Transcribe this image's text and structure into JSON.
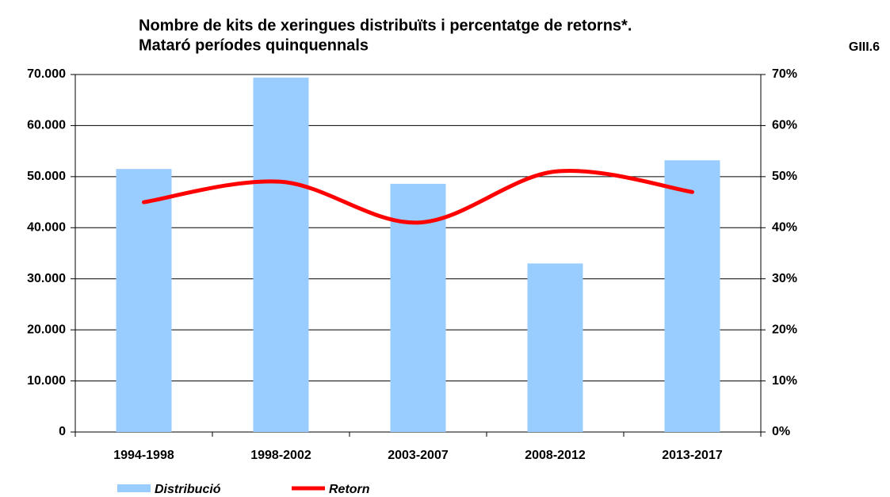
{
  "chart_data": {
    "type": "bar_line",
    "title": [
      "Nombre de kits de xeringues distribuïts i percentatge de retorns*.",
      "Mataró períodes quinquennals"
    ],
    "chart_id": "GIII.6",
    "categories": [
      "1994-1998",
      "1998-2002",
      "2003-2007",
      "2008-2012",
      "2013-2017"
    ],
    "series": [
      {
        "name": "Distribució",
        "type": "bar",
        "color": "#99ccff",
        "values": [
          51500,
          69400,
          48600,
          33000,
          53200
        ]
      },
      {
        "name": "Retorn",
        "type": "line",
        "axis": "y2",
        "color": "#ff0000",
        "values": [
          45,
          49,
          41,
          51,
          47
        ]
      }
    ],
    "ylim": [
      0,
      70000
    ],
    "yticks": [
      0,
      {
        "value": 10000,
        "label": "10.000"
      },
      {
        "value": 20000,
        "label": "20.000"
      },
      {
        "value": 30000,
        "label": "30.000"
      },
      {
        "value": 40000,
        "label": "40.000"
      },
      {
        "value": 50000,
        "label": "50.000"
      },
      {
        "value": 60000,
        "label": "60.000"
      },
      {
        "value": 70000,
        "label": "70.000"
      }
    ],
    "y2lim": [
      0,
      70
    ],
    "y2ticks": [
      {
        "value": 0,
        "label": "0%"
      },
      {
        "value": 10,
        "label": "10%"
      },
      {
        "value": 20,
        "label": "20%"
      },
      {
        "value": 30,
        "label": "30%"
      },
      {
        "value": 40,
        "label": "40%"
      },
      {
        "value": 50,
        "label": "50%"
      },
      {
        "value": 60,
        "label": "60%"
      },
      {
        "value": 70,
        "label": "70%"
      }
    ],
    "grid": true,
    "legend": "bottom"
  }
}
